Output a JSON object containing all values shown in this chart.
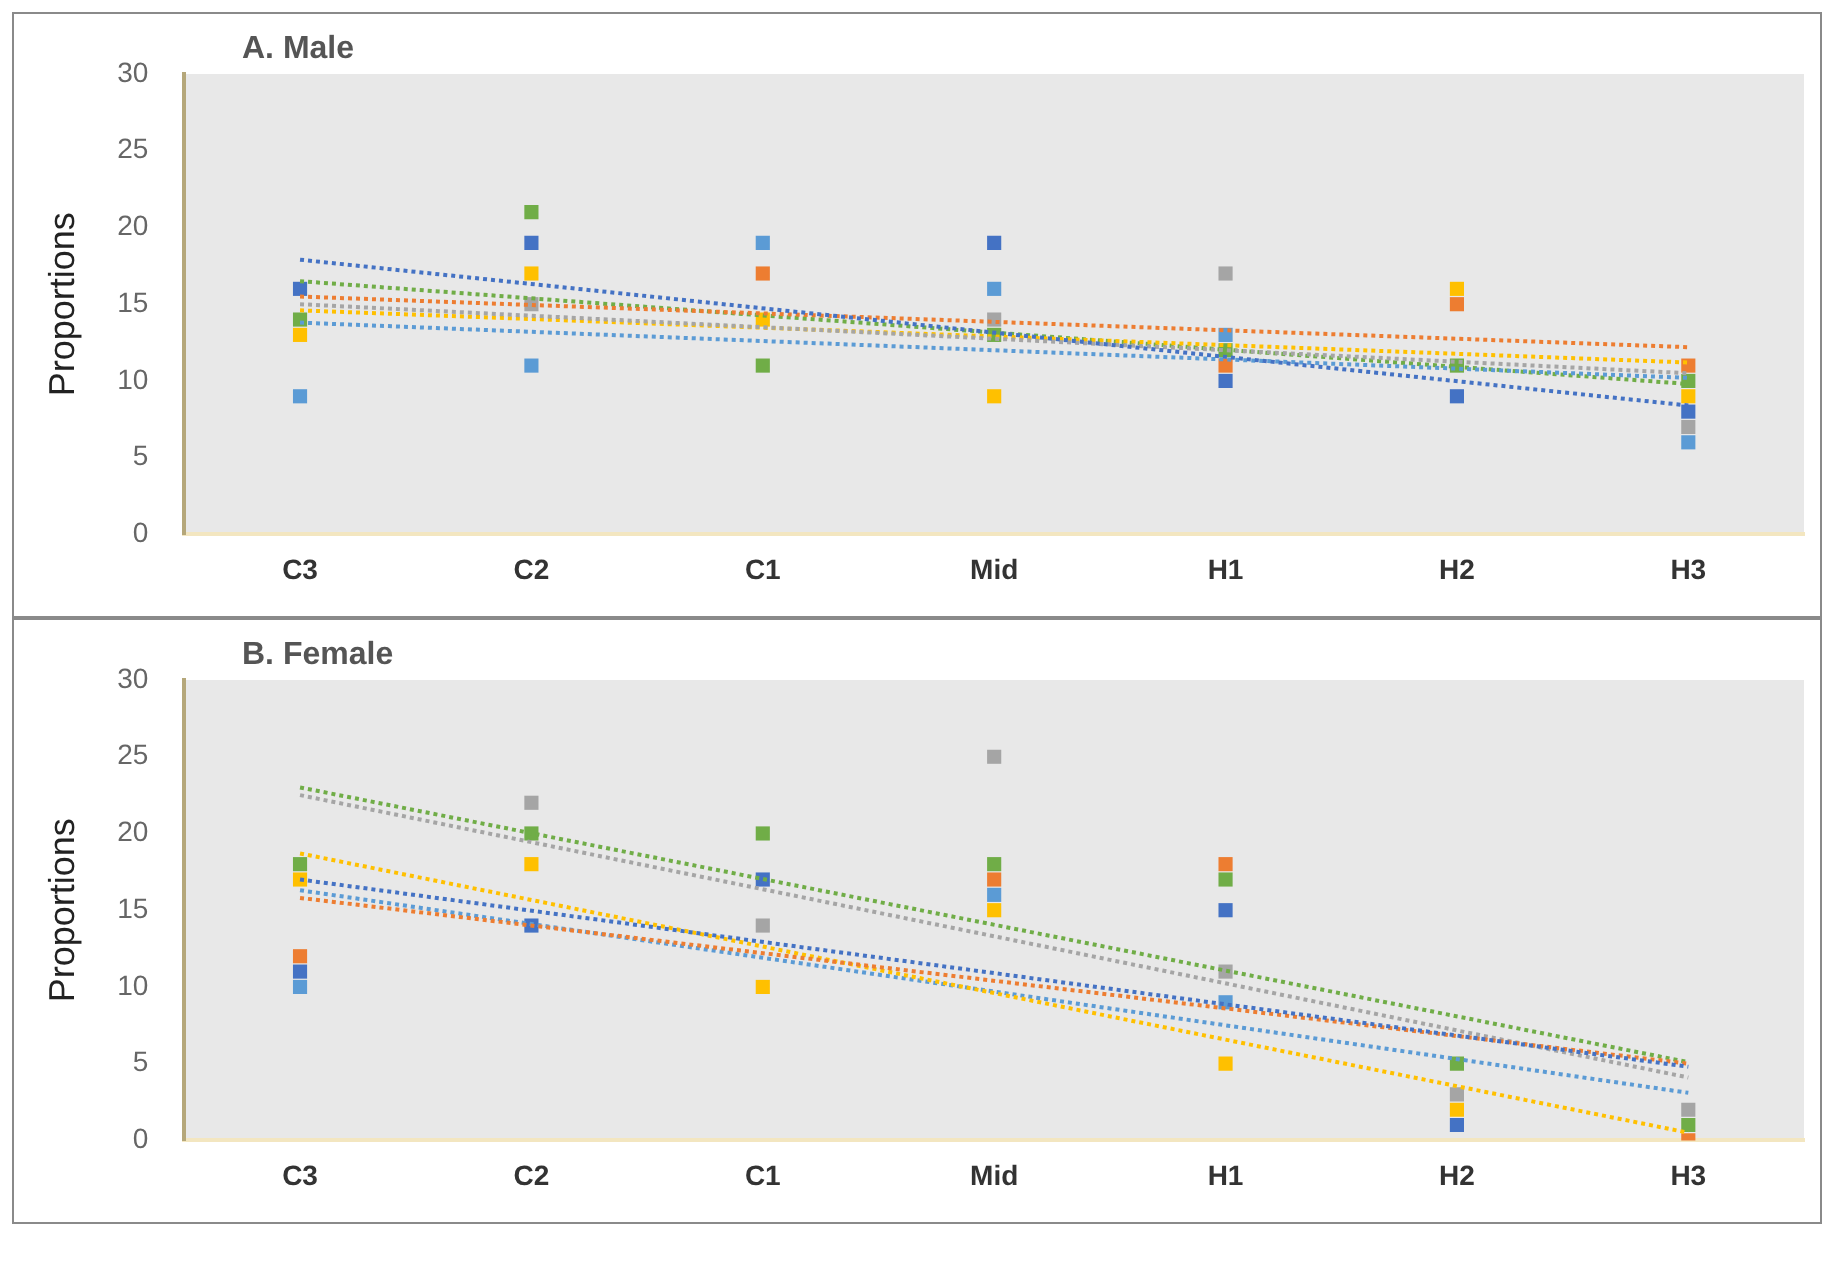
{
  "chart_data": [
    {
      "type": "scatter",
      "title": "A. Male",
      "ylabel": "Proportions",
      "categories": [
        "C3",
        "C2",
        "C1",
        "Mid",
        "H1",
        "H2",
        "H3"
      ],
      "ylim": [
        0,
        30
      ],
      "yticks": [
        0,
        5,
        10,
        15,
        20,
        25,
        30
      ],
      "marker": "square",
      "series": [
        {
          "color": "#4472c4",
          "values": [
            16,
            19,
            null,
            19,
            10,
            9,
            8
          ]
        },
        {
          "color": "#ed7d31",
          "values": [
            null,
            null,
            17,
            null,
            11,
            15,
            11
          ]
        },
        {
          "color": "#a5a5a5",
          "values": [
            null,
            15,
            null,
            14,
            17,
            null,
            7
          ]
        },
        {
          "color": "#ffc000",
          "values": [
            13,
            17,
            14,
            9,
            null,
            16,
            9
          ]
        },
        {
          "color": "#5b9bd5",
          "values": [
            9,
            11,
            19,
            16,
            13,
            null,
            6
          ]
        },
        {
          "color": "#70ad47",
          "values": [
            14,
            21,
            11,
            13,
            12,
            11,
            10
          ]
        },
        {
          "type": "line",
          "line_style": "dotted",
          "marker": "none",
          "color": "#4472c4",
          "values": [
            17.9,
            null,
            null,
            null,
            null,
            null,
            8.4
          ]
        },
        {
          "type": "line",
          "line_style": "dotted",
          "marker": "none",
          "color": "#ed7d31",
          "values": [
            15.5,
            null,
            null,
            null,
            null,
            null,
            12.2
          ]
        },
        {
          "type": "line",
          "line_style": "dotted",
          "marker": "none",
          "color": "#a5a5a5",
          "values": [
            15,
            null,
            null,
            null,
            null,
            null,
            10.5
          ]
        },
        {
          "type": "line",
          "line_style": "dotted",
          "marker": "none",
          "color": "#ffc000",
          "values": [
            14.6,
            null,
            null,
            null,
            null,
            null,
            11.2
          ]
        },
        {
          "type": "line",
          "line_style": "dotted",
          "marker": "none",
          "color": "#5b9bd5",
          "values": [
            13.8,
            null,
            null,
            null,
            null,
            null,
            10.2
          ]
        },
        {
          "type": "line",
          "line_style": "dotted",
          "marker": "none",
          "color": "#70ad47",
          "values": [
            16.5,
            null,
            null,
            null,
            null,
            null,
            9.8
          ]
        }
      ]
    },
    {
      "type": "scatter",
      "title": "B. Female",
      "ylabel": "Proportions",
      "categories": [
        "C3",
        "C2",
        "C1",
        "Mid",
        "H1",
        "H2",
        "H3"
      ],
      "ylim": [
        0,
        30
      ],
      "yticks": [
        0,
        5,
        10,
        15,
        20,
        25,
        30
      ],
      "marker": "square",
      "series": [
        {
          "color": "#4472c4",
          "values": [
            11,
            14,
            17,
            null,
            15,
            1,
            null
          ]
        },
        {
          "color": "#ed7d31",
          "values": [
            12,
            null,
            null,
            17,
            18,
            null,
            0
          ]
        },
        {
          "color": "#a5a5a5",
          "values": [
            null,
            22,
            14,
            25,
            11,
            3,
            2
          ]
        },
        {
          "color": "#ffc000",
          "values": [
            17,
            18,
            10,
            15,
            5,
            2,
            null
          ]
        },
        {
          "color": "#5b9bd5",
          "values": [
            10,
            null,
            null,
            16,
            9,
            null,
            null
          ]
        },
        {
          "color": "#70ad47",
          "values": [
            18,
            20,
            20,
            18,
            17,
            5,
            1
          ]
        },
        {
          "type": "line",
          "line_style": "dotted",
          "marker": "none",
          "color": "#4472c4",
          "values": [
            17.0,
            null,
            null,
            null,
            null,
            null,
            4.8
          ]
        },
        {
          "type": "line",
          "line_style": "dotted",
          "marker": "none",
          "color": "#ed7d31",
          "values": [
            15.8,
            null,
            null,
            null,
            null,
            null,
            5.0
          ]
        },
        {
          "type": "line",
          "line_style": "dotted",
          "marker": "none",
          "color": "#a5a5a5",
          "values": [
            22.5,
            null,
            null,
            null,
            null,
            null,
            4.1
          ]
        },
        {
          "type": "line",
          "line_style": "dotted",
          "marker": "none",
          "color": "#ffc000",
          "values": [
            18.7,
            null,
            null,
            null,
            null,
            null,
            0.5
          ]
        },
        {
          "type": "line",
          "line_style": "dotted",
          "marker": "none",
          "color": "#5b9bd5",
          "values": [
            16.3,
            null,
            null,
            null,
            null,
            null,
            3.1
          ]
        },
        {
          "type": "line",
          "line_style": "dotted",
          "marker": "none",
          "color": "#70ad47",
          "values": [
            23.0,
            null,
            null,
            null,
            null,
            null,
            5.1
          ]
        }
      ]
    }
  ]
}
